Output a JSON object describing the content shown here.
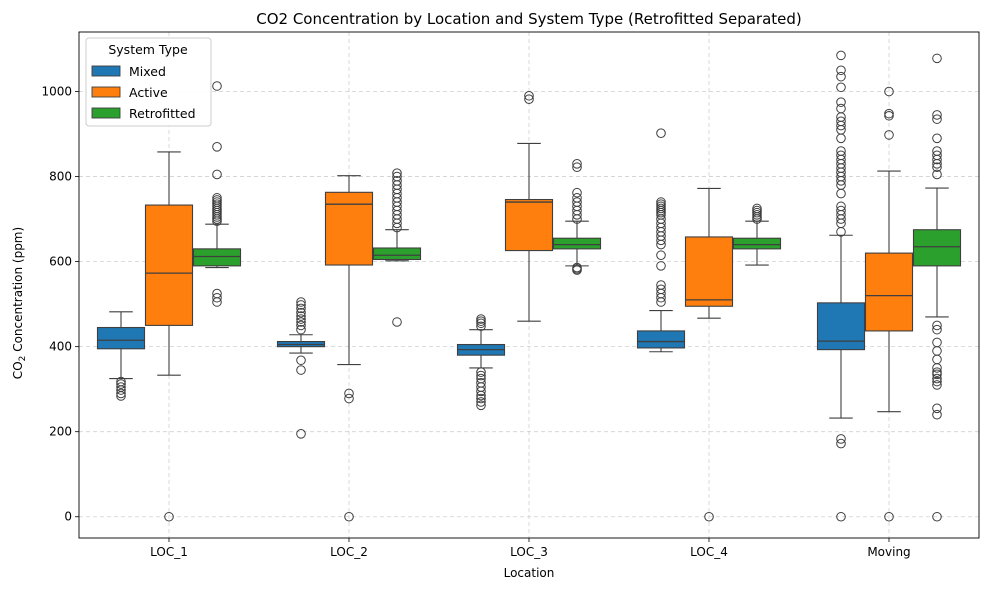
{
  "chart_data": {
    "type": "box",
    "title": "CO2 Concentration by Location and System Type (Retrofitted Separated)",
    "xlabel": "Location",
    "ylabel": "CO$_2$ Concentration (ppm)",
    "ylabel_parts": {
      "pre": "CO",
      "sub": "2",
      "post": " Concentration (ppm)"
    },
    "ylim": [
      -50,
      1140
    ],
    "yticks": [
      0,
      200,
      400,
      600,
      800,
      1000
    ],
    "ytick_labels": [
      "0",
      "200",
      "400",
      "600",
      "800",
      "1000"
    ],
    "grid": true,
    "legend": {
      "title": "System Type",
      "placement": "top-left"
    },
    "categories": [
      "LOC_1",
      "LOC_2",
      "LOC_3",
      "LOC_4",
      "Moving"
    ],
    "series": [
      {
        "name": "Mixed",
        "color": "#1f77b4",
        "boxes": [
          {
            "whislo": 325,
            "q1": 395,
            "med": 415,
            "q3": 445,
            "whishi": 482,
            "fliers": [
              318,
              312,
              305,
              298,
              290,
              284
            ]
          },
          {
            "whislo": 385,
            "q1": 400,
            "med": 405,
            "q3": 412,
            "whishi": 428,
            "fliers": [
              368,
              345,
              195,
              440,
              450,
              458,
              465,
              472,
              480,
              490,
              498,
              505
            ]
          },
          {
            "whislo": 350,
            "q1": 380,
            "med": 393,
            "q3": 405,
            "whishi": 440,
            "fliers": [
              340,
              332,
              325,
              315,
              305,
              295,
              285,
              278,
              270,
              262,
              448,
              455,
              460,
              465
            ]
          },
          {
            "whislo": 388,
            "q1": 397,
            "med": 412,
            "q3": 437,
            "whishi": 485,
            "fliers": [
              505,
              515,
              525,
              535,
              545,
              590,
              615,
              640,
              650,
              660,
              670,
              680,
              690,
              700,
              710,
              715,
              720,
              725,
              730,
              735,
              740,
              902
            ]
          },
          {
            "whislo": 232,
            "q1": 393,
            "med": 413,
            "q3": 503,
            "whishi": 662,
            "fliers": [
              0,
              172,
              183,
              670,
              690,
              700,
              710,
              720,
              730,
              760,
              780,
              790,
              800,
              810,
              820,
              830,
              840,
              850,
              860,
              890,
              910,
              920,
              930,
              940,
              960,
              975,
              1010,
              1035,
              1050,
              1085
            ]
          }
        ]
      },
      {
        "name": "Active",
        "color": "#ff7f0e",
        "boxes": [
          {
            "whislo": 333,
            "q1": 450,
            "med": 573,
            "q3": 733,
            "whishi": 858,
            "fliers": [
              0
            ]
          },
          {
            "whislo": 358,
            "q1": 592,
            "med": 735,
            "q3": 763,
            "whishi": 802,
            "fliers": [
              0,
              278,
              290
            ]
          },
          {
            "whislo": 460,
            "q1": 626,
            "med": 740,
            "q3": 746,
            "whishi": 878,
            "fliers": [
              982,
              990
            ]
          },
          {
            "whislo": 467,
            "q1": 495,
            "med": 510,
            "q3": 658,
            "whishi": 772,
            "fliers": [
              0
            ]
          },
          {
            "whislo": 247,
            "q1": 437,
            "med": 520,
            "q3": 620,
            "whishi": 813,
            "fliers": [
              0,
              898,
              943,
              948,
              1000
            ]
          }
        ]
      },
      {
        "name": "Retrofitted",
        "color": "#2ca02c",
        "boxes": [
          {
            "whislo": 586,
            "q1": 590,
            "med": 612,
            "q3": 630,
            "whishi": 688,
            "fliers": [
              505,
              515,
              525,
              695,
              700,
              705,
              710,
              715,
              720,
              725,
              730,
              735,
              740,
              745,
              750,
              805,
              870,
              1013
            ]
          },
          {
            "whislo": 602,
            "q1": 605,
            "med": 615,
            "q3": 632,
            "whishi": 675,
            "fliers": [
              458,
              680,
              690,
              700,
              710,
              720,
              730,
              740,
              750,
              760,
              770,
              780,
              790,
              800,
              808
            ]
          },
          {
            "whislo": 590,
            "q1": 630,
            "med": 640,
            "q3": 655,
            "whishi": 695,
            "fliers": [
              580,
              583,
              586,
              700,
              710,
              720,
              730,
              740,
              750,
              762,
              822,
              830
            ]
          },
          {
            "whislo": 592,
            "q1": 630,
            "med": 640,
            "q3": 655,
            "whishi": 695,
            "fliers": [
              700,
              705,
              710,
              715,
              720,
              725
            ]
          },
          {
            "whislo": 470,
            "q1": 590,
            "med": 635,
            "q3": 675,
            "whishi": 773,
            "fliers": [
              0,
              240,
              255,
              310,
              318,
              325,
              335,
              340,
              350,
              370,
              390,
              410,
              440,
              450,
              805,
              822,
              830,
              840,
              850,
              860,
              890,
              935,
              945,
              1078
            ]
          }
        ]
      }
    ]
  }
}
